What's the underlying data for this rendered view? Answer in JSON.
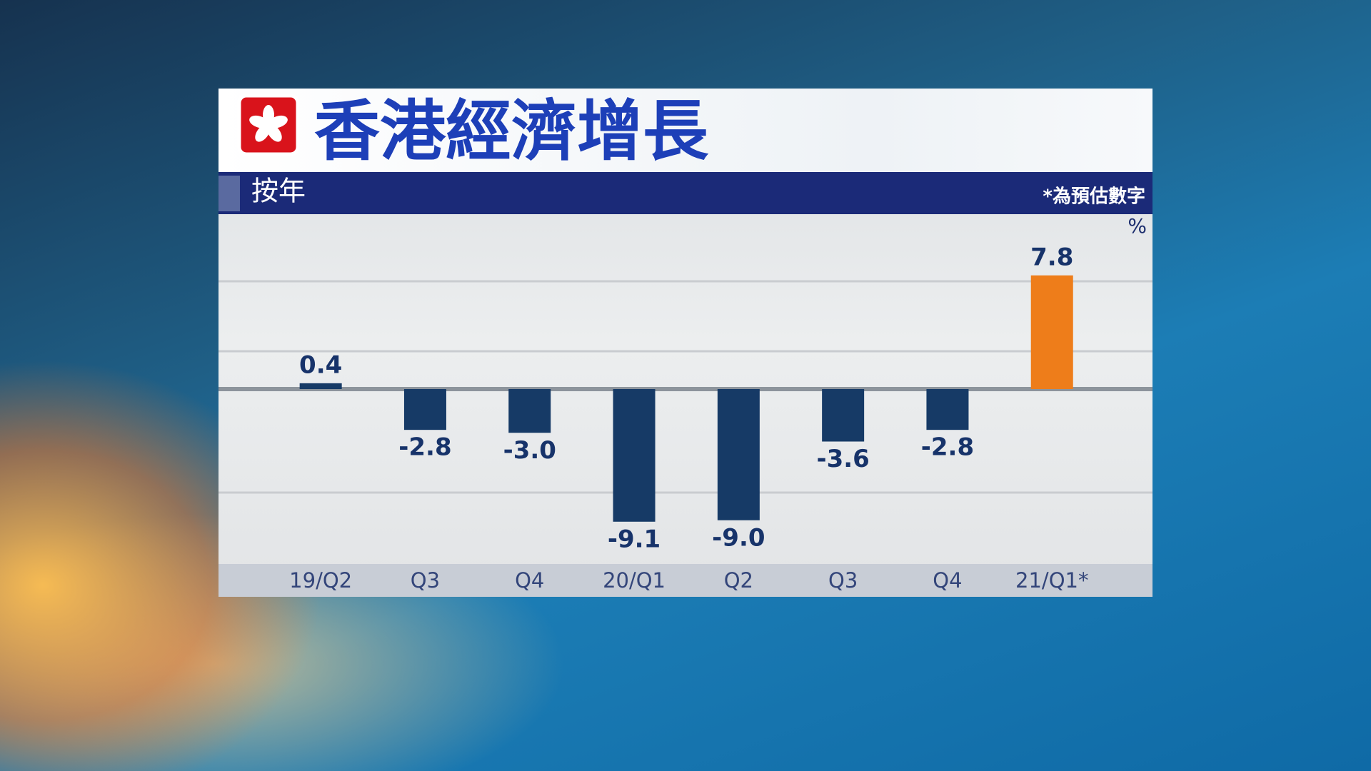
{
  "chart_data": {
    "type": "bar",
    "title": "香港經濟增長",
    "subtitle": "按年",
    "note": "*為預估數字",
    "unit": "%",
    "categories": [
      "19/Q2",
      "Q3",
      "Q4",
      "20/Q1",
      "Q2",
      "Q3",
      "Q4",
      "21/Q1*"
    ],
    "values": [
      0.4,
      -2.8,
      -3.0,
      -9.1,
      -9.0,
      -3.6,
      -2.8,
      7.8
    ],
    "value_labels": [
      "0.4",
      "-2.8",
      "-3.0",
      "-9.1",
      "-9.0",
      "-3.6",
      "-2.8",
      "7.8"
    ],
    "colors": [
      "#163a66",
      "#163a66",
      "#163a66",
      "#163a66",
      "#163a66",
      "#163a66",
      "#163a66",
      "#ee7d1a"
    ],
    "ylim": [
      -12,
      12
    ]
  }
}
